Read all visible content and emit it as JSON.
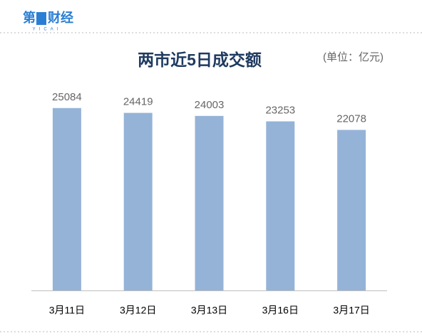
{
  "logo": {
    "left": "第",
    "right": "财经",
    "sub": "YICAI"
  },
  "chart_data": {
    "type": "bar",
    "title": "两市近5日成交额",
    "subtitle": "(单位：亿元)",
    "categories": [
      "3月11日",
      "3月12日",
      "3月13日",
      "3月16日",
      "3月17日"
    ],
    "values": [
      25084,
      24419,
      24003,
      23253,
      22078
    ],
    "color": "#95b3d7",
    "ylim": [
      0,
      28000
    ],
    "grid": false
  }
}
